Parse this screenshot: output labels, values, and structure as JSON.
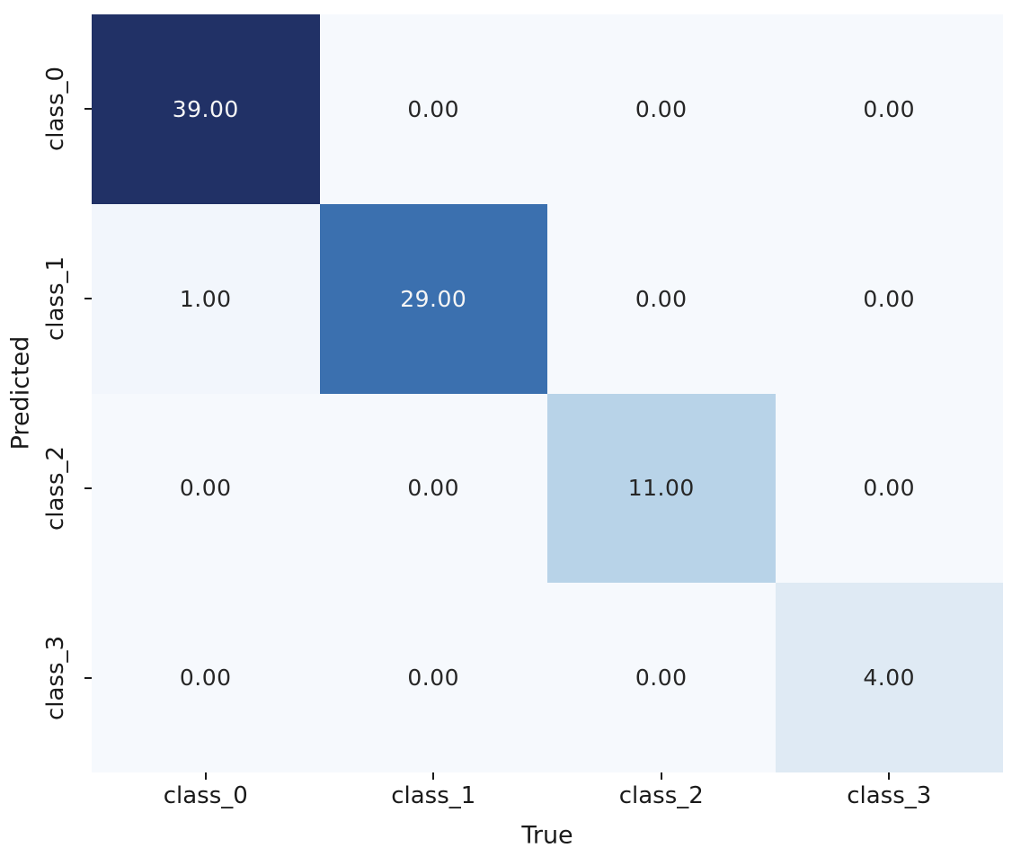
{
  "figure": {
    "background": "#ffffff"
  },
  "chart_data": {
    "type": "heatmap",
    "title": "",
    "xlabel": "True",
    "ylabel": "Predicted",
    "x_categories": [
      "class_0",
      "class_1",
      "class_2",
      "class_3"
    ],
    "y_categories": [
      "class_0",
      "class_1",
      "class_2",
      "class_3"
    ],
    "values": [
      [
        39,
        0,
        0,
        0
      ],
      [
        1,
        29,
        0,
        0
      ],
      [
        0,
        0,
        11,
        0
      ],
      [
        0,
        0,
        0,
        4
      ]
    ],
    "cell_labels": [
      [
        "39.00",
        "0.00",
        "0.00",
        "0.00"
      ],
      [
        "1.00",
        "29.00",
        "0.00",
        "0.00"
      ],
      [
        "0.00",
        "0.00",
        "11.00",
        "0.00"
      ],
      [
        "0.00",
        "0.00",
        "0.00",
        "4.00"
      ]
    ],
    "cell_colors": [
      [
        "#213166",
        "#f6f9fd",
        "#f6f9fd",
        "#f6f9fd"
      ],
      [
        "#f2f6fc",
        "#3b70af",
        "#f6f9fd",
        "#f6f9fd"
      ],
      [
        "#f6f9fd",
        "#f6f9fd",
        "#b8d3e8",
        "#f6f9fd"
      ],
      [
        "#f6f9fd",
        "#f6f9fd",
        "#f6f9fd",
        "#dfeaf4"
      ]
    ],
    "cell_text_colors": [
      [
        "#f5f5f5",
        "#262626",
        "#262626",
        "#262626"
      ],
      [
        "#262626",
        "#f5f5f5",
        "#262626",
        "#262626"
      ],
      [
        "#262626",
        "#262626",
        "#262626",
        "#262626"
      ],
      [
        "#262626",
        "#262626",
        "#262626",
        "#262626"
      ]
    ],
    "colormap": "Blues",
    "vmin": 0,
    "vmax": 39,
    "grid": false,
    "legend": "none",
    "axis_text_color": "#1a1a1a"
  }
}
